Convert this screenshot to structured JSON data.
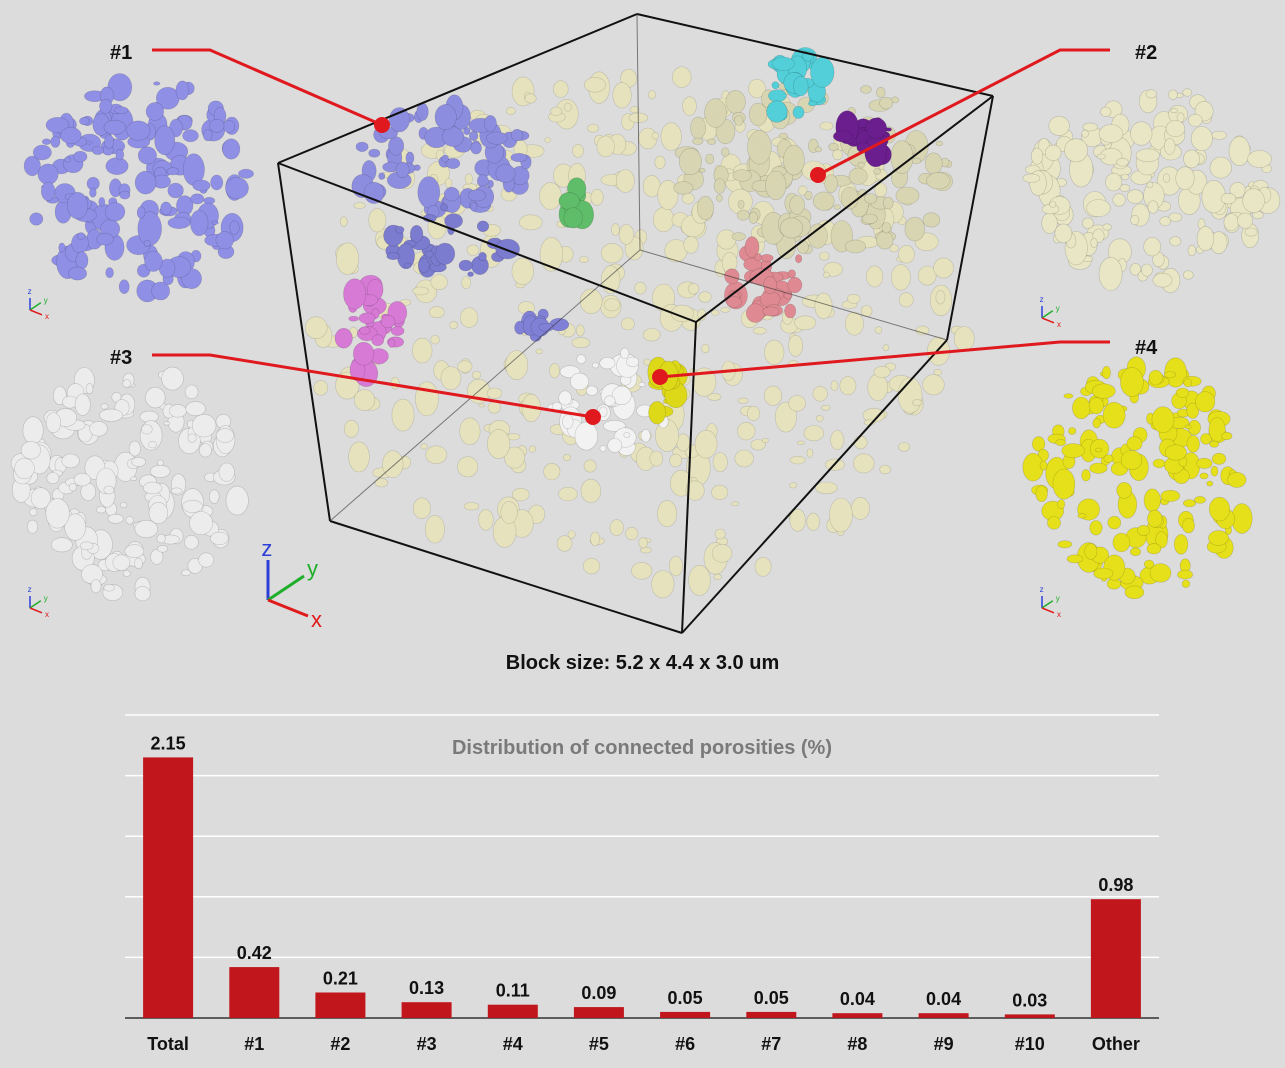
{
  "figure": {
    "callouts": [
      {
        "id": "c1",
        "label": "#1",
        "color": "#8f8fe6"
      },
      {
        "id": "c2",
        "label": "#2",
        "color": "#e8e6c4"
      },
      {
        "id": "c3",
        "label": "#3",
        "color": "#ececec"
      },
      {
        "id": "c4",
        "label": "#4",
        "color": "#e6e01a"
      }
    ],
    "axis_labels": {
      "x": "x",
      "y": "y",
      "z": "z"
    },
    "block_caption": "Block size: 5.2 x 4.4 x 3.0 um",
    "colors": {
      "callout_line": "#e0191e",
      "pore_base": "#e8e4b8",
      "box_edge": "#111111"
    }
  },
  "chart_data": {
    "type": "bar",
    "title": "Distribution of connected porosities (%)",
    "categories": [
      "Total",
      "#1",
      "#2",
      "#3",
      "#4",
      "#5",
      "#6",
      "#7",
      "#8",
      "#9",
      "#10",
      "Other"
    ],
    "values": [
      2.15,
      0.42,
      0.21,
      0.13,
      0.11,
      0.09,
      0.05,
      0.05,
      0.04,
      0.04,
      0.03,
      0.98
    ],
    "value_labels": [
      "2.15",
      "0.42",
      "0.21",
      "0.13",
      "0.11",
      "0.09",
      "0.05",
      "0.05",
      "0.04",
      "0.04",
      "0.03",
      "0.98"
    ],
    "xlabel": "",
    "ylabel": "",
    "ylim": [
      0,
      2.5
    ],
    "grid": true,
    "legend": "none",
    "bar_color": "#c0161c"
  }
}
